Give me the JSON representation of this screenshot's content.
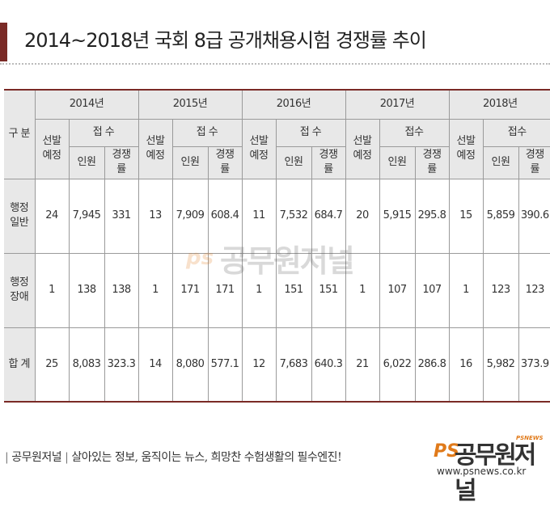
{
  "title": "2014~2018년 국회 8급 공개채용시험 경쟁률 추이",
  "table": {
    "row_header": "구 분",
    "years": [
      "2014년",
      "2015년",
      "2016년",
      "2017년",
      "2018년"
    ],
    "col_selection": "선발\n예정",
    "col_applicants": [
      "접 수",
      "접 수",
      "접 수",
      "접수",
      "접수"
    ],
    "col_people": "인원",
    "col_ratio": "경쟁\n률",
    "rows": [
      {
        "label": "행정\n일반",
        "cells": [
          [
            "24",
            "7,945",
            "331"
          ],
          [
            "13",
            "7,909",
            "608.4"
          ],
          [
            "11",
            "7,532",
            "684.7"
          ],
          [
            "20",
            "5,915",
            "295.8"
          ],
          [
            "15",
            "5,859",
            "390.6"
          ]
        ]
      },
      {
        "label": "행정\n장애",
        "cells": [
          [
            "1",
            "138",
            "138"
          ],
          [
            "1",
            "171",
            "171"
          ],
          [
            "1",
            "151",
            "151"
          ],
          [
            "1",
            "107",
            "107"
          ],
          [
            "1",
            "123",
            "123"
          ]
        ]
      },
      {
        "label": "합 계",
        "cells": [
          [
            "25",
            "8,083",
            "323.3"
          ],
          [
            "14",
            "8,080",
            "577.1"
          ],
          [
            "12",
            "7,683",
            "640.3"
          ],
          [
            "21",
            "6,022",
            "286.8"
          ],
          [
            "16",
            "5,982",
            "373.9"
          ]
        ]
      }
    ]
  },
  "watermark": {
    "ps": "ps",
    "name": "공무원저널"
  },
  "footer": {
    "brand": "공무원저널",
    "slogan": "살아있는 정보, 움직이는 뉴스, 희망찬 수험생활의 필수엔진!"
  },
  "logo": {
    "ps": "PS",
    "name": "공무원저널",
    "tag": "PSNEWS",
    "url": "www.psnews.co.kr"
  },
  "colors": {
    "accent": "#7a2a26",
    "header_bg": "#e8e8e8",
    "logo_orange": "#e07a1a"
  }
}
